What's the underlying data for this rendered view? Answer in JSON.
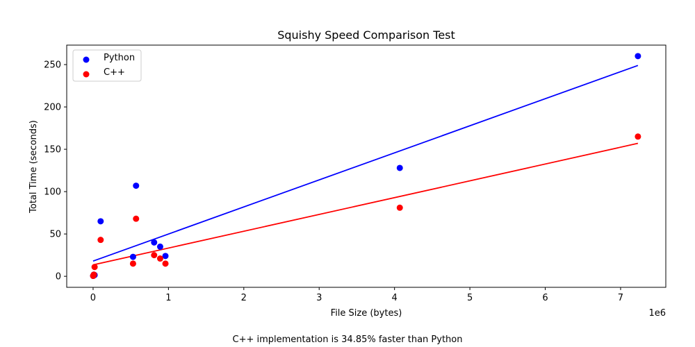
{
  "chart_data": {
    "type": "scatter",
    "title": "Squishy Speed Comparison Test",
    "xlabel": "File Size (bytes)",
    "ylabel": "Total Time (seconds)",
    "x_scale_label": "1e6",
    "x_tick_labels": [
      "0",
      "1",
      "2",
      "3",
      "4",
      "5",
      "6",
      "7"
    ],
    "y_tick_labels": [
      "0",
      "50",
      "100",
      "150",
      "200",
      "250"
    ],
    "xlim": [
      -350000,
      7600000
    ],
    "ylim": [
      -13,
      273
    ],
    "grid": false,
    "legend_position": "top-left",
    "series": [
      {
        "name": "Python",
        "color": "#0000ff",
        "x": [
          1000,
          5000,
          10000,
          20000,
          100000,
          530000,
          570000,
          810000,
          890000,
          960000,
          4070000,
          7230000
        ],
        "y": [
          0.5,
          1,
          2,
          1.5,
          65,
          23,
          107,
          40,
          35,
          24,
          128,
          260
        ],
        "trendline": {
          "x": [
            0,
            7230000
          ],
          "y": [
            18,
            249
          ]
        }
      },
      {
        "name": "C++",
        "color": "#ff0000",
        "x": [
          1000,
          5000,
          10000,
          20000,
          100000,
          530000,
          570000,
          810000,
          890000,
          960000,
          4070000,
          7230000
        ],
        "y": [
          0.5,
          1,
          2,
          11,
          43,
          15,
          68,
          25,
          21,
          15,
          81,
          165
        ],
        "trendline": {
          "x": [
            0,
            7230000
          ],
          "y": [
            13.5,
            157
          ]
        }
      }
    ]
  },
  "footnote": "C++ implementation is 34.85% faster than Python"
}
